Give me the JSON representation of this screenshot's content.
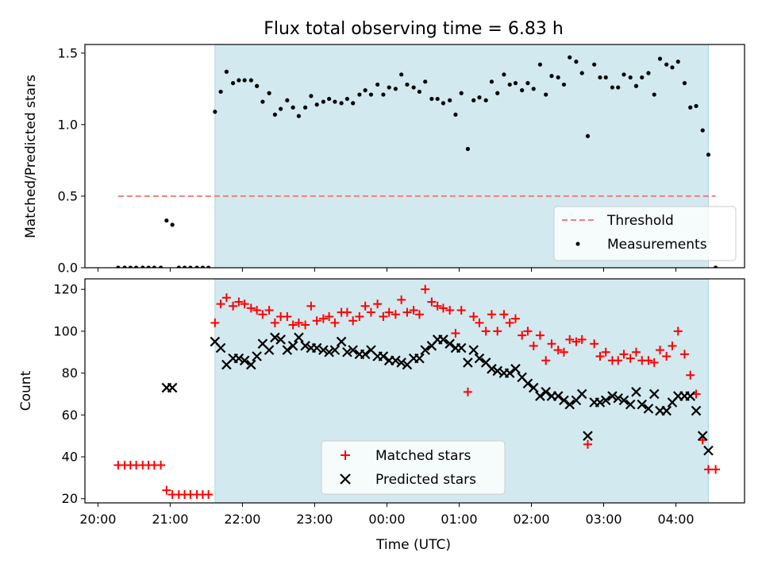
{
  "chart_data": [
    {
      "type": "scatter",
      "title": "Flux total observing time = 6.83 h",
      "xlabel": "",
      "ylabel": "Matched/Predicted stars",
      "ylim": [
        0,
        1.56
      ],
      "yticks": [
        "0.0",
        "0.5",
        "1.0",
        "1.5"
      ],
      "ytick_values": [
        0,
        0.5,
        1.0,
        1.5
      ],
      "xlim_hours": [
        19.82,
        28.95
      ],
      "shaded_span_hours": [
        21.62,
        28.45
      ],
      "shaded_color": "#d2e9ef",
      "legend_position": "lower right",
      "threshold": {
        "name": "Threshold",
        "value": 0.5,
        "x_hours": [
          20.28,
          28.55
        ],
        "color": "#f07f7f"
      },
      "series": [
        {
          "name": "Measurements",
          "color": "#000000",
          "x_hours": [
            20.28,
            20.37,
            20.45,
            20.53,
            20.62,
            20.7,
            20.78,
            20.87,
            20.95,
            21.03,
            21.12,
            21.2,
            21.28,
            21.37,
            21.45,
            21.53,
            21.62,
            21.7,
            21.78,
            21.87,
            21.95,
            22.03,
            22.12,
            22.2,
            22.28,
            22.37,
            22.45,
            22.53,
            22.62,
            22.7,
            22.78,
            22.87,
            22.95,
            23.03,
            23.12,
            23.2,
            23.28,
            23.37,
            23.45,
            23.53,
            23.62,
            23.7,
            23.78,
            23.87,
            23.95,
            24.03,
            24.12,
            24.2,
            24.28,
            24.37,
            24.45,
            24.53,
            24.62,
            24.7,
            24.78,
            24.87,
            24.95,
            25.03,
            25.12,
            25.2,
            25.28,
            25.37,
            25.45,
            25.53,
            25.62,
            25.7,
            25.78,
            25.87,
            25.95,
            26.03,
            26.12,
            26.2,
            26.28,
            26.37,
            26.45,
            26.53,
            26.62,
            26.7,
            26.78,
            26.87,
            26.95,
            27.03,
            27.12,
            27.2,
            27.28,
            27.37,
            27.45,
            27.53,
            27.62,
            27.7,
            27.78,
            27.87,
            27.95,
            28.03,
            28.12,
            28.2,
            28.28,
            28.37,
            28.45,
            28.55
          ],
          "y": [
            0,
            0,
            0,
            0,
            0,
            0,
            0,
            0,
            0.33,
            0.3,
            0,
            0,
            0,
            0,
            0,
            0,
            1.09,
            1.23,
            1.37,
            1.29,
            1.31,
            1.31,
            1.31,
            1.27,
            1.16,
            1.22,
            1.07,
            1.11,
            1.17,
            1.12,
            1.06,
            1.12,
            1.2,
            1.14,
            1.16,
            1.18,
            1.16,
            1.15,
            1.18,
            1.15,
            1.21,
            1.24,
            1.21,
            1.28,
            1.21,
            1.26,
            1.25,
            1.35,
            1.28,
            1.26,
            1.23,
            1.3,
            1.18,
            1.18,
            1.15,
            1.17,
            1.07,
            1.22,
            0.83,
            1.17,
            1.19,
            1.17,
            1.3,
            1.22,
            1.35,
            1.28,
            1.29,
            1.24,
            1.29,
            1.25,
            1.42,
            1.21,
            1.34,
            1.33,
            1.28,
            1.47,
            1.44,
            1.36,
            0.92,
            1.42,
            1.33,
            1.33,
            1.26,
            1.26,
            1.35,
            1.33,
            1.27,
            1.33,
            1.36,
            1.21,
            1.46,
            1.42,
            1.4,
            1.44,
            1.29,
            1.12,
            1.13,
            0.96,
            0.79,
            0.0
          ]
        }
      ]
    },
    {
      "type": "scatter",
      "title": "",
      "xlabel": "Time (UTC)",
      "ylabel": "Count",
      "ylim": [
        18,
        125
      ],
      "yticks": [
        "20",
        "40",
        "60",
        "80",
        "100",
        "120"
      ],
      "ytick_values": [
        20,
        40,
        60,
        80,
        100,
        120
      ],
      "xticks": [
        "20:00",
        "21:00",
        "22:00",
        "23:00",
        "00:00",
        "01:00",
        "02:00",
        "03:00",
        "04:00"
      ],
      "xtick_hours": [
        20,
        21,
        22,
        23,
        24,
        25,
        26,
        27,
        28
      ],
      "xlim_hours": [
        19.82,
        28.95
      ],
      "shaded_span_hours": [
        21.62,
        28.45
      ],
      "shaded_color": "#d2e9ef",
      "legend_position": "lower center",
      "series": [
        {
          "name": "Matched stars",
          "marker": "+",
          "color": "#ff0000",
          "x_hours": [
            20.28,
            20.37,
            20.45,
            20.53,
            20.62,
            20.7,
            20.78,
            20.87,
            20.95,
            21.03,
            21.12,
            21.2,
            21.28,
            21.37,
            21.45,
            21.53,
            21.62,
            21.7,
            21.78,
            21.87,
            21.95,
            22.03,
            22.12,
            22.2,
            22.28,
            22.37,
            22.45,
            22.53,
            22.62,
            22.7,
            22.78,
            22.87,
            22.95,
            23.03,
            23.12,
            23.2,
            23.28,
            23.37,
            23.45,
            23.53,
            23.62,
            23.7,
            23.78,
            23.87,
            23.95,
            24.03,
            24.12,
            24.2,
            24.28,
            24.37,
            24.45,
            24.53,
            24.62,
            24.7,
            24.78,
            24.87,
            24.95,
            25.03,
            25.12,
            25.2,
            25.28,
            25.37,
            25.45,
            25.53,
            25.62,
            25.7,
            25.78,
            25.87,
            25.95,
            26.03,
            26.12,
            26.2,
            26.28,
            26.37,
            26.45,
            26.53,
            26.62,
            26.7,
            26.78,
            26.87,
            26.95,
            27.03,
            27.12,
            27.2,
            27.28,
            27.37,
            27.45,
            27.53,
            27.62,
            27.7,
            27.78,
            27.87,
            27.95,
            28.03,
            28.12,
            28.2,
            28.28,
            28.37,
            28.45,
            28.55
          ],
          "y": [
            36,
            36,
            36,
            36,
            36,
            36,
            36,
            36,
            24,
            22,
            22,
            22,
            22,
            22,
            22,
            22,
            104,
            113,
            116,
            112,
            114,
            113,
            111,
            110,
            108,
            110,
            104,
            107,
            107,
            103,
            104,
            103,
            112,
            105,
            106,
            107,
            104,
            109,
            109,
            105,
            107,
            112,
            109,
            113,
            107,
            109,
            108,
            115,
            109,
            110,
            108,
            120,
            114,
            112,
            111,
            110,
            99,
            110,
            71,
            107,
            104,
            100,
            108,
            100,
            108,
            104,
            106,
            98,
            100,
            93,
            98,
            86,
            94,
            91,
            90,
            96,
            95,
            96,
            46,
            94,
            88,
            90,
            86,
            86,
            89,
            87,
            90,
            86,
            86,
            85,
            91,
            88,
            93,
            100,
            89,
            79,
            70,
            48,
            34,
            34
          ]
        },
        {
          "name": "Predicted stars",
          "marker": "x",
          "color": "#000000",
          "x_hours": [
            20.95,
            21.03,
            21.62,
            21.7,
            21.78,
            21.87,
            21.95,
            22.03,
            22.12,
            22.2,
            22.28,
            22.37,
            22.45,
            22.53,
            22.62,
            22.7,
            22.78,
            22.87,
            22.95,
            23.03,
            23.12,
            23.2,
            23.28,
            23.37,
            23.45,
            23.53,
            23.62,
            23.7,
            23.78,
            23.87,
            23.95,
            24.03,
            24.12,
            24.2,
            24.28,
            24.37,
            24.45,
            24.53,
            24.62,
            24.7,
            24.78,
            24.87,
            24.95,
            25.03,
            25.12,
            25.2,
            25.28,
            25.37,
            25.45,
            25.53,
            25.62,
            25.7,
            25.78,
            25.87,
            25.95,
            26.03,
            26.12,
            26.2,
            26.28,
            26.37,
            26.45,
            26.53,
            26.62,
            26.7,
            26.78,
            26.87,
            26.95,
            27.03,
            27.12,
            27.2,
            27.28,
            27.37,
            27.45,
            27.53,
            27.62,
            27.7,
            27.78,
            27.87,
            27.95,
            28.03,
            28.12,
            28.2,
            28.28,
            28.37,
            28.45
          ],
          "y": [
            73,
            73,
            95,
            92,
            84,
            87,
            87,
            86,
            84,
            88,
            94,
            91,
            97,
            96,
            91,
            93,
            97,
            93,
            92,
            92,
            91,
            90,
            91,
            95,
            90,
            91,
            89,
            89,
            91,
            88,
            88,
            86,
            86,
            85,
            84,
            87,
            87,
            91,
            93,
            96,
            96,
            94,
            92,
            92,
            85,
            91,
            87,
            85,
            82,
            81,
            80,
            80,
            82,
            78,
            75,
            73,
            69,
            71,
            69,
            69,
            67,
            65,
            67,
            70,
            50,
            66,
            66,
            67,
            69,
            68,
            67,
            65,
            71,
            65,
            63,
            70,
            62,
            62,
            66,
            69,
            69,
            69,
            62,
            50,
            43
          ]
        }
      ]
    }
  ]
}
